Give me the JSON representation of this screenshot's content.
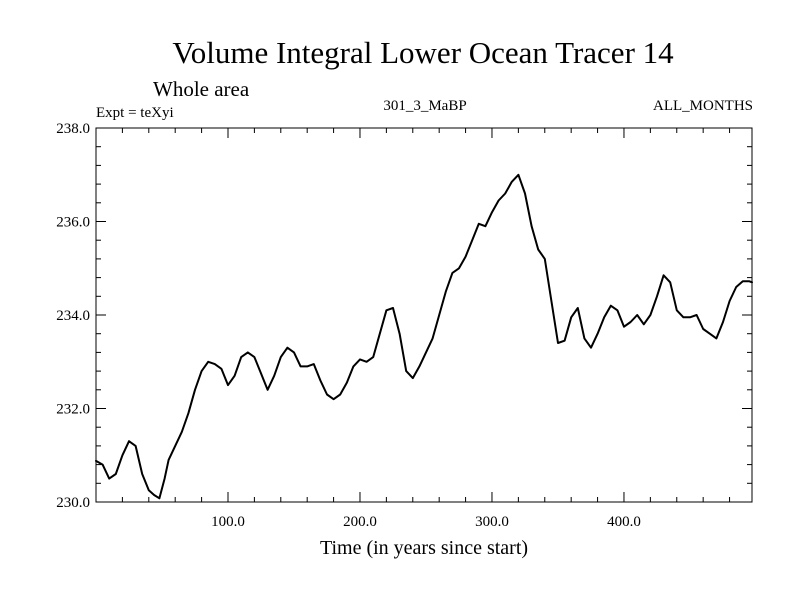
{
  "chart_data": {
    "type": "line",
    "title": "Volume Integral Lower Ocean Tracer 14",
    "subtitle": "Whole area",
    "left_note": "Expt = teXyi",
    "center_note": "301_3_MaBP",
    "right_note": "ALL_MONTHS",
    "xlabel": "Time (in years since start)",
    "ylabel": "",
    "xlim": [
      0,
      497
    ],
    "ylim": [
      230.0,
      238.0
    ],
    "x_ticks": [
      100,
      200,
      300,
      400
    ],
    "x_tick_labels": [
      "100.0",
      "200.0",
      "300.0",
      "400.0"
    ],
    "y_ticks": [
      230,
      232,
      234,
      236,
      238
    ],
    "y_tick_labels": [
      "230.0",
      "232.0",
      "234.0",
      "236.0",
      "238.0"
    ],
    "grid": false,
    "line_color": "#000000",
    "series": [
      {
        "x": [
          0,
          5,
          10,
          15,
          20,
          25,
          30,
          35,
          40,
          44,
          48,
          52,
          55,
          60,
          65,
          70,
          75,
          80,
          85,
          90,
          95,
          100,
          105,
          110,
          115,
          120,
          125,
          130,
          135,
          140,
          145,
          150,
          155,
          160,
          165,
          170,
          175,
          180,
          185,
          190,
          195,
          200,
          205,
          210,
          215,
          220,
          225,
          230,
          235,
          240,
          245,
          250,
          255,
          260,
          265,
          270,
          275,
          280,
          285,
          290,
          295,
          300,
          305,
          310,
          315,
          320,
          325,
          330,
          335,
          340,
          345,
          350,
          355,
          360,
          365,
          370,
          375,
          380,
          385,
          390,
          395,
          400,
          405,
          410,
          415,
          420,
          425,
          430,
          435,
          440,
          445,
          450,
          455,
          460,
          465,
          470,
          475,
          480,
          485,
          490,
          495,
          497
        ],
        "values": [
          230.88,
          230.8,
          230.5,
          230.6,
          231.0,
          231.3,
          231.2,
          230.6,
          230.25,
          230.15,
          230.08,
          230.5,
          230.9,
          231.2,
          231.5,
          231.9,
          232.4,
          232.8,
          233.0,
          232.95,
          232.85,
          232.5,
          232.7,
          233.1,
          233.2,
          233.1,
          232.75,
          232.4,
          232.7,
          233.1,
          233.3,
          233.2,
          232.9,
          232.9,
          232.95,
          232.6,
          232.3,
          232.2,
          232.3,
          232.55,
          232.9,
          233.05,
          233.0,
          233.1,
          233.6,
          234.1,
          234.15,
          233.6,
          232.8,
          232.65,
          232.9,
          233.2,
          233.5,
          234.0,
          234.5,
          234.9,
          235.0,
          235.25,
          235.6,
          235.95,
          235.9,
          236.2,
          236.45,
          236.6,
          236.85,
          237.0,
          236.6,
          235.9,
          235.4,
          235.2,
          234.3,
          233.4,
          233.45,
          233.95,
          234.15,
          233.5,
          233.3,
          233.6,
          233.95,
          234.2,
          234.1,
          233.75,
          233.85,
          234.0,
          233.8,
          234.0,
          234.4,
          234.85,
          234.7,
          234.1,
          233.95,
          233.95,
          234.0,
          233.7,
          233.6,
          233.5,
          233.85,
          234.3,
          234.6,
          234.72,
          234.72,
          234.7
        ]
      }
    ]
  }
}
